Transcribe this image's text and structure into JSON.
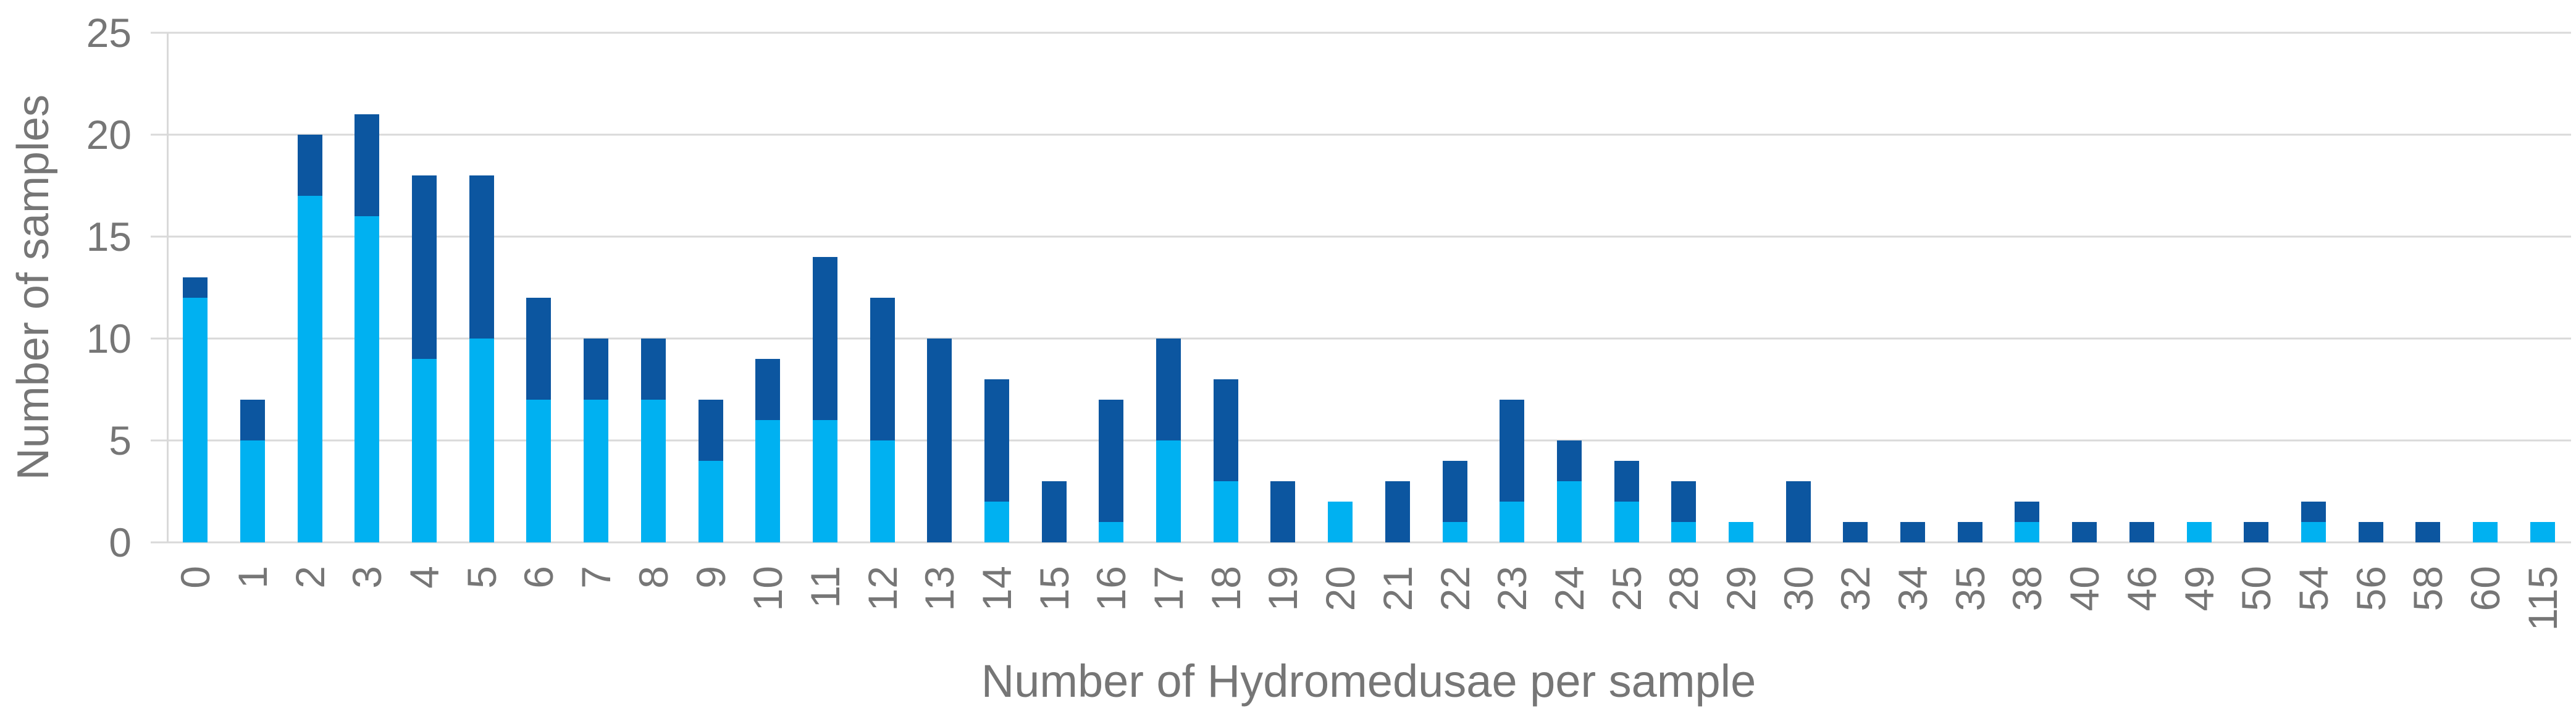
{
  "chart_data": {
    "type": "bar",
    "stacked": true,
    "orientation": "vertical",
    "title": "",
    "xlabel": "Number of Hydromedusae per sample",
    "ylabel": "Number of samples",
    "categories": [
      "0",
      "1",
      "2",
      "3",
      "4",
      "5",
      "6",
      "7",
      "8",
      "9",
      "10",
      "11",
      "12",
      "13",
      "14",
      "15",
      "16",
      "17",
      "18",
      "19",
      "20",
      "21",
      "22",
      "23",
      "24",
      "25",
      "28",
      "29",
      "30",
      "32",
      "34",
      "35",
      "38",
      "40",
      "46",
      "49",
      "50",
      "54",
      "56",
      "58",
      "60",
      "115"
    ],
    "series": [
      {
        "key": "light-blue-bottom",
        "name": "light blue (bottom segment)",
        "color": "#00B1F1",
        "values": [
          12,
          5,
          17,
          16,
          9,
          10,
          7,
          7,
          7,
          4,
          6,
          6,
          5,
          0,
          2,
          0,
          1,
          5,
          3,
          0,
          2,
          0,
          1,
          2,
          3,
          2,
          1,
          1,
          0,
          0,
          0,
          0,
          1,
          0,
          0,
          1,
          0,
          1,
          0,
          0,
          1,
          1
        ]
      },
      {
        "key": "dark-blue-top",
        "name": "dark blue (top segment)",
        "color": "#0C56A0",
        "values": [
          1,
          2,
          3,
          5,
          9,
          8,
          5,
          3,
          3,
          3,
          3,
          8,
          7,
          10,
          6,
          3,
          6,
          5,
          5,
          3,
          0,
          3,
          3,
          5,
          2,
          2,
          2,
          0,
          3,
          1,
          1,
          1,
          1,
          1,
          1,
          0,
          1,
          1,
          1,
          1,
          0,
          0
        ]
      }
    ],
    "ylim": [
      0,
      25
    ],
    "yticks": [
      0,
      5,
      10,
      15,
      20,
      25
    ],
    "grid": "horizontal",
    "gridline_color": "#D9D9D9",
    "axis_line_color": "#D9D9D9",
    "axis_text_color": "#767676",
    "x_tick_rotation_degrees": 270,
    "legend": "none"
  }
}
